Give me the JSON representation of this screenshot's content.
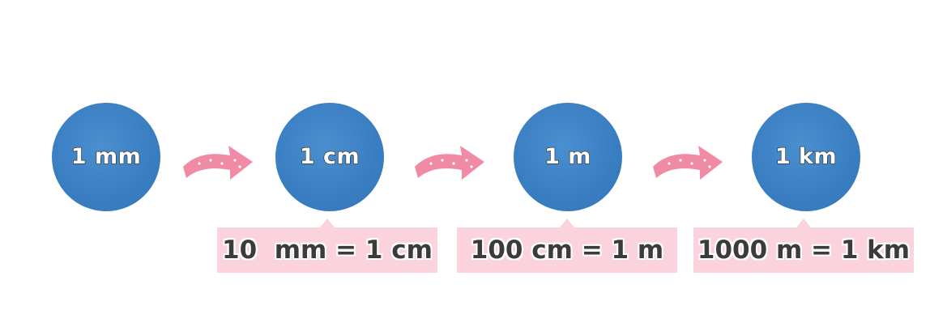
{
  "units": [
    {
      "label": "1 mm"
    },
    {
      "label": "1 cm"
    },
    {
      "label": "1 m"
    },
    {
      "label": "1 km"
    }
  ],
  "conversions": [
    {
      "text": "10  mm = 1 cm"
    },
    {
      "text": "100 cm = 1 m"
    },
    {
      "text": "1000 m = 1 km"
    }
  ],
  "colors": {
    "circle": "#3a7ec2",
    "arrow": "#f08aa5",
    "box": "#fbd3dc"
  },
  "icons": {
    "arrow": "right-arrow-icon"
  }
}
